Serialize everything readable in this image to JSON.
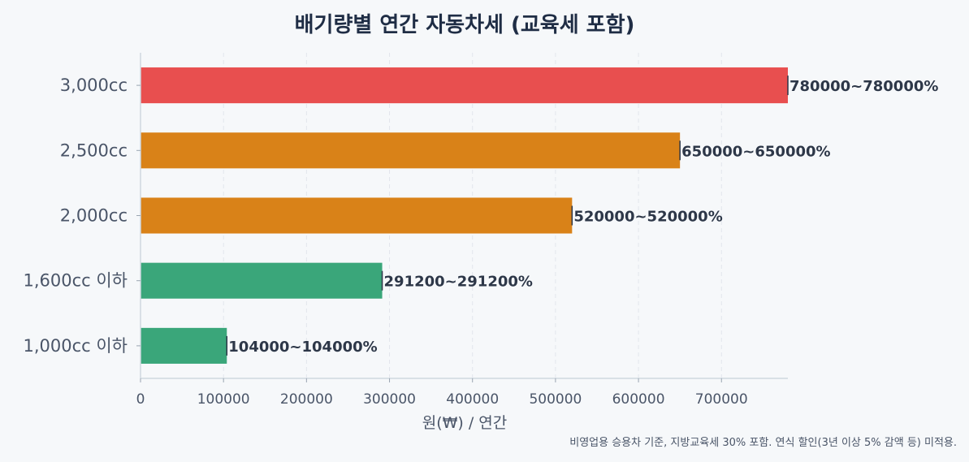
{
  "chart_data": {
    "type": "bar",
    "orientation": "horizontal",
    "title": "배기량별 연간 자동차세 (교육세 포함)",
    "xlabel": "원(₩) / 연간",
    "ylabel": "",
    "categories": [
      "1,000cc 이하",
      "1,600cc 이하",
      "2,000cc",
      "2,500cc",
      "3,000cc"
    ],
    "values": [
      104000,
      291200,
      520000,
      650000,
      780000
    ],
    "data_labels": [
      "104000~104000%",
      "291200~291200%",
      "520000~520000%",
      "650000~650000%",
      "780000~780000%"
    ],
    "bar_colors": [
      "#3aa67a",
      "#3aa67a",
      "#d98218",
      "#d98218",
      "#e84f4f"
    ],
    "xlim": [
      0,
      780000
    ],
    "xticks": [
      0,
      100000,
      200000,
      300000,
      400000,
      500000,
      600000,
      700000
    ],
    "xtick_labels": [
      "0",
      "100000",
      "200000",
      "300000",
      "400000",
      "500000",
      "600000",
      "700000"
    ],
    "grid": "x-dashed",
    "footnote": "비영업용 승용차 기준, 지방교육세 30% 포함. 연식 할인(3년 이상 5% 감액 등) 미적용."
  }
}
